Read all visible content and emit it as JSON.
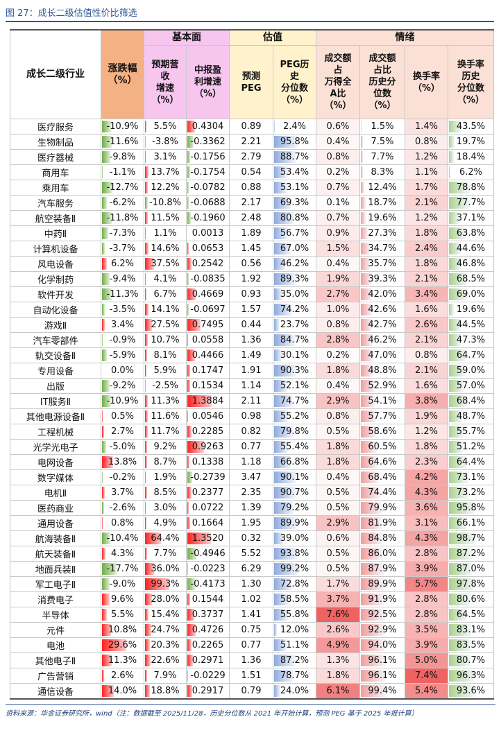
{
  "header": {
    "title": "图 27：成长二级估值性价比筛选"
  },
  "table": {
    "groups": [
      "基本面",
      "估值",
      "情绪"
    ],
    "columns": [
      "成长二级行业",
      "涨跌幅\n（%）",
      "预期营\n收\n增速\n（%）",
      "中报盈\n利增速\n（%）",
      "预测\nPEG",
      "PEG历\n史\n分位数\n（%）",
      "成交额\n占\n万得全\nA比\n（%）",
      "成交额\n占比\n历史分\n位数\n（%）",
      "换手率\n（%）",
      "换手率\n历史\n分位数\n（%）"
    ],
    "rows": [
      [
        "医疗服务",
        "-10.9%",
        "5.5%",
        "0.4304",
        "0.89",
        "2.4%",
        "0.6%",
        "1.5%",
        "1.4%",
        "43.5%"
      ],
      [
        "生物制品",
        "-11.6%",
        "-3.8%",
        "-0.3362",
        "2.21",
        "95.8%",
        "0.4%",
        "7.5%",
        "0.8%",
        "19.7%"
      ],
      [
        "医疗器械",
        "-9.8%",
        "3.1%",
        "-0.1756",
        "2.79",
        "88.7%",
        "0.8%",
        "7.7%",
        "1.2%",
        "18.4%"
      ],
      [
        "商用车",
        "-1.1%",
        "13.7%",
        "-0.1754",
        "0.54",
        "53.4%",
        "0.2%",
        "8.3%",
        "1.1%",
        "6.2%"
      ],
      [
        "乘用车",
        "-12.7%",
        "12.2%",
        "-0.0782",
        "0.88",
        "53.1%",
        "0.7%",
        "12.4%",
        "1.7%",
        "78.8%"
      ],
      [
        "汽车服务",
        "-6.2%",
        "-10.8%",
        "-0.0688",
        "2.17",
        "69.3%",
        "0.1%",
        "18.7%",
        "2.1%",
        "77.7%"
      ],
      [
        "航空装备Ⅱ",
        "-11.8%",
        "11.5%",
        "-0.1960",
        "2.48",
        "80.8%",
        "0.7%",
        "19.6%",
        "1.2%",
        "37.1%"
      ],
      [
        "中药Ⅱ",
        "-7.3%",
        "1.1%",
        "0.0013",
        "1.89",
        "56.7%",
        "0.9%",
        "27.3%",
        "1.8%",
        "63.8%"
      ],
      [
        "计算机设备",
        "-3.7%",
        "14.6%",
        "0.0653",
        "1.45",
        "67.0%",
        "1.5%",
        "34.7%",
        "2.4%",
        "44.6%"
      ],
      [
        "风电设备",
        "6.2%",
        "37.5%",
        "0.2542",
        "0.56",
        "46.2%",
        "0.4%",
        "35.7%",
        "1.8%",
        "46.8%"
      ],
      [
        "化学制药",
        "-9.4%",
        "4.1%",
        "-0.0835",
        "1.92",
        "89.3%",
        "1.9%",
        "39.3%",
        "2.1%",
        "68.5%"
      ],
      [
        "软件开发",
        "-11.3%",
        "6.7%",
        "0.4669",
        "0.93",
        "35.0%",
        "2.7%",
        "42.0%",
        "3.4%",
        "69.0%"
      ],
      [
        "自动化设备",
        "-3.5%",
        "14.1%",
        "-0.0697",
        "1.57",
        "74.2%",
        "1.0%",
        "42.6%",
        "1.6%",
        "19.6%"
      ],
      [
        "游戏Ⅱ",
        "3.4%",
        "27.5%",
        "0.7495",
        "0.44",
        "23.7%",
        "0.8%",
        "42.7%",
        "2.6%",
        "44.5%"
      ],
      [
        "汽车零部件",
        "-0.9%",
        "10.7%",
        "0.0558",
        "1.36",
        "84.7%",
        "2.8%",
        "46.2%",
        "2.1%",
        "47.3%"
      ],
      [
        "轨交设备Ⅱ",
        "-5.9%",
        "8.1%",
        "0.4466",
        "1.49",
        "30.1%",
        "0.2%",
        "47.0%",
        "0.8%",
        "64.7%"
      ],
      [
        "专用设备",
        "0.0%",
        "5.9%",
        "0.1747",
        "1.91",
        "90.3%",
        "1.8%",
        "48.8%",
        "2.1%",
        "59.0%"
      ],
      [
        "出版",
        "-9.2%",
        "-2.5%",
        "0.1534",
        "1.14",
        "52.1%",
        "0.4%",
        "52.9%",
        "1.6%",
        "57.0%"
      ],
      [
        "IT服务Ⅱ",
        "-10.9%",
        "11.3%",
        "1.3884",
        "2.11",
        "74.7%",
        "2.9%",
        "54.1%",
        "3.8%",
        "68.4%"
      ],
      [
        "其他电源设备Ⅱ",
        "0.5%",
        "11.6%",
        "0.0546",
        "0.98",
        "55.2%",
        "0.8%",
        "57.7%",
        "1.9%",
        "48.7%"
      ],
      [
        "工程机械",
        "2.7%",
        "11.7%",
        "0.2285",
        "0.82",
        "79.8%",
        "0.5%",
        "58.6%",
        "1.2%",
        "55.7%"
      ],
      [
        "光学光电子",
        "-5.0%",
        "9.2%",
        "0.9263",
        "0.77",
        "55.4%",
        "1.8%",
        "60.5%",
        "1.8%",
        "51.2%"
      ],
      [
        "电网设备",
        "13.8%",
        "8.7%",
        "0.1338",
        "1.18",
        "66.8%",
        "1.8%",
        "64.6%",
        "2.3%",
        "64.4%"
      ],
      [
        "数字媒体",
        "-0.2%",
        "1.9%",
        "-0.2739",
        "3.47",
        "90.1%",
        "0.4%",
        "68.4%",
        "4.2%",
        "73.1%"
      ],
      [
        "电机Ⅱ",
        "3.7%",
        "8.5%",
        "0.2377",
        "2.35",
        "90.7%",
        "0.5%",
        "74.4%",
        "4.3%",
        "73.2%"
      ],
      [
        "医药商业",
        "-2.6%",
        "3.0%",
        "0.0722",
        "1.39",
        "79.2%",
        "0.5%",
        "79.9%",
        "3.6%",
        "95.8%"
      ],
      [
        "通用设备",
        "0.8%",
        "4.9%",
        "0.1664",
        "1.95",
        "89.9%",
        "2.9%",
        "81.9%",
        "3.1%",
        "66.1%"
      ],
      [
        "航海装备Ⅱ",
        "-10.4%",
        "64.4%",
        "1.3520",
        "0.32",
        "39.0%",
        "0.6%",
        "84.8%",
        "4.3%",
        "98.7%"
      ],
      [
        "航天装备Ⅱ",
        "4.3%",
        "7.7%",
        "-0.4946",
        "5.52",
        "93.8%",
        "0.5%",
        "86.0%",
        "2.8%",
        "87.2%"
      ],
      [
        "地面兵装Ⅱ",
        "-17.7%",
        "36.0%",
        "-0.0223",
        "6.29",
        "99.2%",
        "0.5%",
        "87.9%",
        "3.9%",
        "87.0%"
      ],
      [
        "军工电子Ⅱ",
        "-9.0%",
        "99.3%",
        "-0.4173",
        "1.30",
        "72.8%",
        "1.7%",
        "89.9%",
        "5.7%",
        "97.8%"
      ],
      [
        "消费电子",
        "9.6%",
        "28.0%",
        "0.1544",
        "1.02",
        "58.5%",
        "3.7%",
        "91.9%",
        "2.8%",
        "80.6%"
      ],
      [
        "半导体",
        "5.5%",
        "15.4%",
        "0.3737",
        "1.41",
        "55.8%",
        "7.6%",
        "92.5%",
        "2.8%",
        "64.5%"
      ],
      [
        "元件",
        "10.8%",
        "24.7%",
        "0.4726",
        "0.75",
        "12.0%",
        "2.6%",
        "92.9%",
        "3.5%",
        "83.1%"
      ],
      [
        "电池",
        "29.6%",
        "20.3%",
        "0.2265",
        "0.77",
        "51.1%",
        "4.9%",
        "94.0%",
        "3.9%",
        "83.5%"
      ],
      [
        "其他电子Ⅱ",
        "11.3%",
        "22.6%",
        "0.2971",
        "1.36",
        "87.2%",
        "1.3%",
        "96.1%",
        "5.0%",
        "80.7%"
      ],
      [
        "广告营销",
        "2.6%",
        "7.9%",
        "-0.0229",
        "1.51",
        "78.7%",
        "1.8%",
        "96.1%",
        "7.4%",
        "96.3%"
      ],
      [
        "通信设备",
        "14.0%",
        "18.8%",
        "0.2917",
        "0.79",
        "24.0%",
        "6.1%",
        "99.4%",
        "5.4%",
        "93.6%"
      ]
    ]
  },
  "footer": {
    "source": "资料来源：华金证券研究所，wind（注：数据截至 2025/11/28，历史分位数从 2021 年开始计算，预测 PEG 基于 2025 年报计算）"
  }
}
